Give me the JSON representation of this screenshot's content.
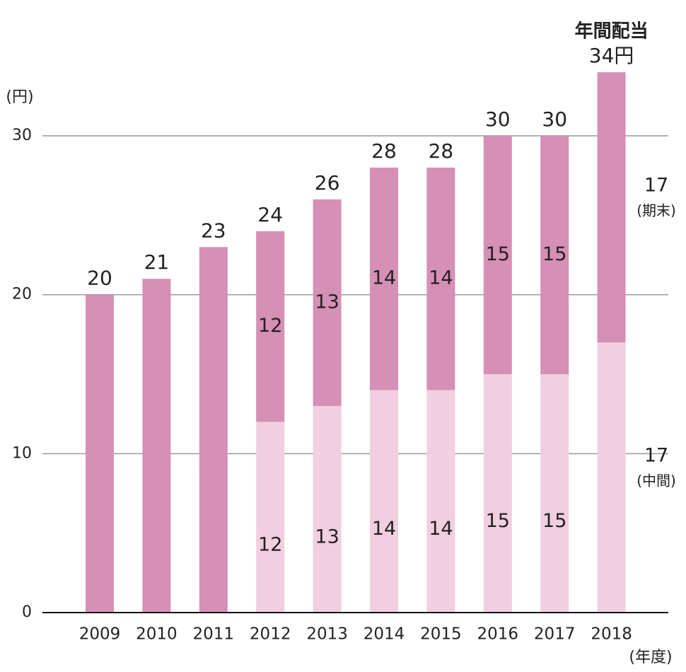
{
  "chart_data": {
    "type": "stacked-bar",
    "y_label": "(円)",
    "x_label": "(年度)",
    "annotation": "年間配当",
    "categories": [
      "2009",
      "2010",
      "2011",
      "2012",
      "2013",
      "2014",
      "2015",
      "2016",
      "2017",
      "2018"
    ],
    "series": [
      {
        "name": "(中間)",
        "color": "#f1cfe0",
        "values": [
          null,
          null,
          null,
          12,
          13,
          14,
          14,
          15,
          15,
          17
        ]
      },
      {
        "name": "(期末)",
        "color": "#d68fb5",
        "values": [
          20,
          21,
          23,
          12,
          13,
          14,
          14,
          15,
          15,
          17
        ],
        "value_labels": [
          null,
          null,
          null,
          "12",
          "13",
          "14",
          "14",
          "15",
          "15",
          "17"
        ]
      }
    ],
    "totals": {
      "values": [
        20,
        21,
        23,
        24,
        26,
        28,
        28,
        30,
        30,
        34
      ],
      "value_labels": [
        "20",
        "21",
        "23",
        "24",
        "26",
        "28",
        "28",
        "30",
        "30",
        "34円"
      ]
    },
    "ylim": [
      0,
      34
    ],
    "yticks": [
      0,
      10,
      20,
      30
    ],
    "grid": true
  }
}
